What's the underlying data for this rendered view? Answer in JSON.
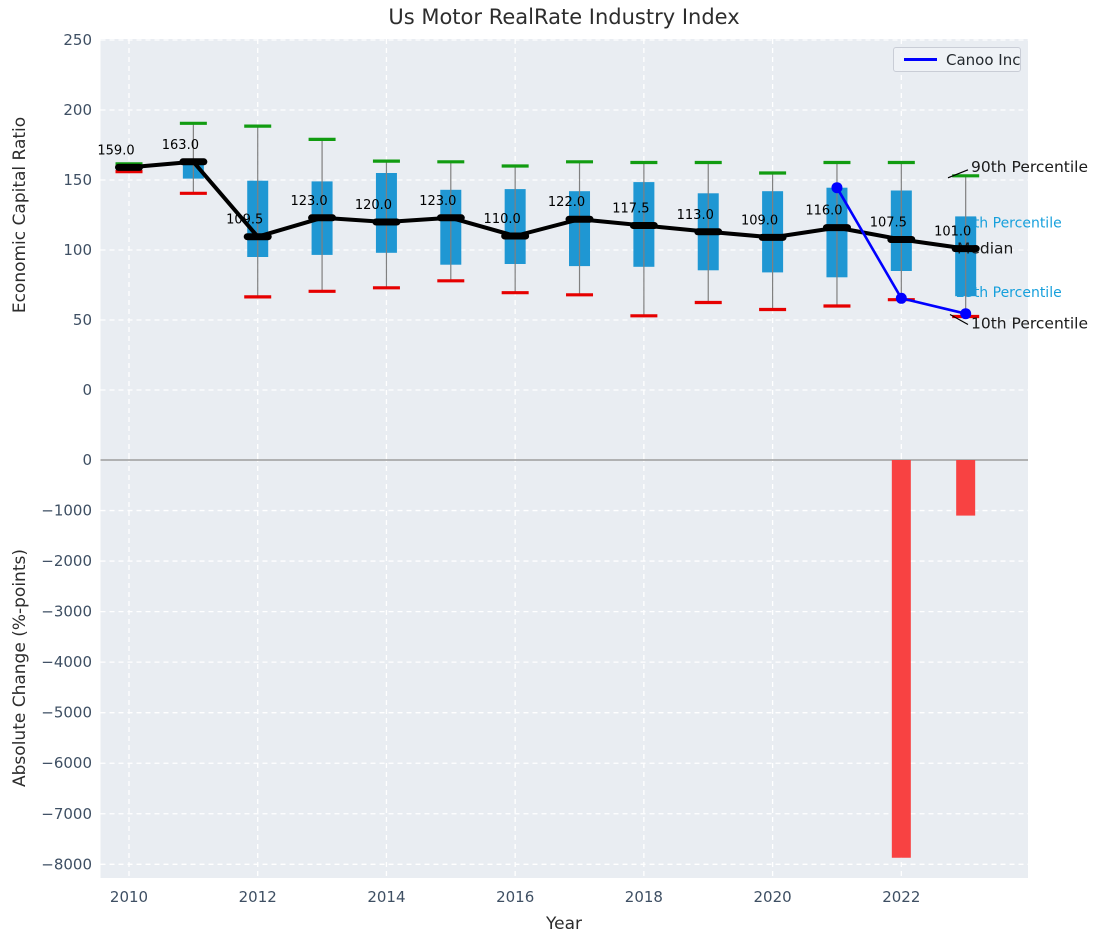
{
  "title": "Us Motor RealRate Industry Index",
  "legend": {
    "series_label": "Canoo Inc"
  },
  "colors": {
    "panel_bg": "#e9edf2",
    "grid": "#ffffff",
    "box_fill": "#1f97d3",
    "p90_cap": "#119c11",
    "p10_cap": "#e60000",
    "median": "#000000",
    "canoo_line": "#0000ff",
    "bar_negative": "#f84242",
    "zero_line": "#a8a8a8",
    "tick_label": "#3e4f63",
    "annotation_black": "#1a1a1a",
    "annotation_cyan": "#17a0dc",
    "value_label": "#000000",
    "whisker": "#808080"
  },
  "chart_data": [
    {
      "type": "box",
      "title": "Us Motor RealRate Industry Index",
      "xlabel": "Year",
      "ylabel": "Economic Capital Ratio",
      "ylim": [
        -48,
        252
      ],
      "yticks": [
        250,
        200,
        150,
        100,
        50,
        0
      ],
      "xticks": [
        2010,
        2012,
        2014,
        2016,
        2018,
        2020,
        2022
      ],
      "grid": true,
      "legend_position": "upper right",
      "years": [
        2010,
        2011,
        2012,
        2013,
        2014,
        2015,
        2016,
        2017,
        2018,
        2019,
        2020,
        2021,
        2022,
        2023
      ],
      "p90": [
        161.5,
        190.5,
        188.5,
        179.0,
        163.5,
        163.0,
        160.0,
        163.0,
        162.5,
        162.5,
        155.0,
        162.5,
        162.5,
        153.0
      ],
      "p75": [
        160.0,
        162.0,
        149.5,
        149.0,
        155.0,
        143.0,
        143.5,
        142.0,
        148.5,
        140.5,
        142.0,
        144.5,
        142.5,
        124.0
      ],
      "median": [
        159.0,
        163.0,
        109.5,
        123.0,
        120.0,
        123.0,
        110.0,
        122.0,
        117.5,
        113.0,
        109.0,
        116.0,
        107.5,
        101.0
      ],
      "p25": [
        157.0,
        151.0,
        95.0,
        96.5,
        98.0,
        89.5,
        90.0,
        88.5,
        88.0,
        85.5,
        84.0,
        80.5,
        85.0,
        67.0
      ],
      "p10": [
        156.0,
        140.5,
        66.5,
        70.5,
        73.0,
        78.0,
        69.5,
        68.0,
        53.0,
        62.5,
        57.5,
        60.0,
        64.5,
        52.5
      ],
      "median_labels": [
        "159.0",
        "163.0",
        "109.5",
        "123.0",
        "120.0",
        "123.0",
        "110.0",
        "122.0",
        "117.5",
        "113.0",
        "109.0",
        "116.0",
        "107.5",
        "101.0"
      ],
      "series": [
        {
          "name": "Canoo Inc",
          "x": [
            2021,
            2022,
            2023
          ],
          "y": [
            144.5,
            65.5,
            54.5
          ]
        }
      ],
      "annotations": [
        "90th Percentile",
        "75th Percentile",
        "Median",
        "25th Percentile",
        "10th Percentile"
      ]
    },
    {
      "type": "bar",
      "xlabel": "Year",
      "ylabel": "Absolute Change (%-points)",
      "ylim": [
        -8300,
        40
      ],
      "yticks": [
        0,
        -1000,
        -2000,
        -3000,
        -4000,
        -5000,
        -6000,
        -7000,
        -8000
      ],
      "xticks": [
        2010,
        2012,
        2014,
        2016,
        2018,
        2020,
        2022
      ],
      "grid": true,
      "categories": [
        2022,
        2023
      ],
      "values": [
        -7870,
        -1100
      ]
    }
  ]
}
